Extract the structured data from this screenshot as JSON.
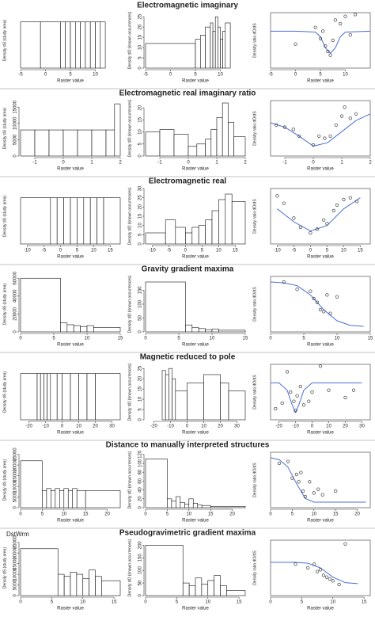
{
  "chart_data": [
    {
      "type": "histogram",
      "xlabel": "Raster value",
      "ylabel": "Density dS (study area)",
      "bins": [
        -5,
        -1,
        3,
        4,
        5,
        6,
        7,
        8,
        9,
        10,
        11,
        12
      ],
      "values": [
        1,
        1,
        1,
        1,
        1,
        1,
        1,
        1,
        1,
        1,
        1
      ],
      "xlim": [
        -5,
        15
      ],
      "xticks": [
        -5,
        0,
        5,
        10
      ],
      "ylim": [
        0,
        1.2
      ]
    },
    {
      "type": "histogram",
      "title": "Electromagnetic imaginary",
      "xlabel": "Raster value",
      "ylabel": "Density dO (known occurrences)",
      "bins": [
        -5,
        5,
        6,
        7,
        8,
        8.5,
        9,
        9.5,
        10,
        10.5,
        11,
        12
      ],
      "values": [
        12,
        14,
        16,
        20,
        22,
        18,
        25,
        20,
        14,
        18,
        22
      ],
      "xlim": [
        -5,
        15
      ],
      "xticks": [
        -5,
        0,
        5,
        10
      ],
      "ylim": [
        0,
        27
      ],
      "yticks": [
        0,
        5,
        10,
        15,
        20,
        25
      ]
    },
    {
      "type": "scatter",
      "xlabel": "Raster value",
      "ylabel": "Density ratio dO/dS",
      "x": [
        0,
        4,
        5,
        5.5,
        6,
        6.5,
        7,
        7.5,
        8,
        9,
        10,
        11,
        12
      ],
      "values": [
        1.3,
        2.2,
        1.6,
        2.0,
        1.2,
        0.9,
        0.7,
        1.5,
        2.6,
        2.4,
        2.8,
        1.8,
        2.9
      ],
      "fit": {
        "x": [
          -5,
          0,
          4,
          5,
          6,
          7,
          8,
          9,
          10,
          15
        ],
        "values": [
          2,
          2,
          1.95,
          1.7,
          1.1,
          0.8,
          1.1,
          1.7,
          1.95,
          2
        ],
        "color": "#4a6fd4"
      },
      "xlim": [
        -5,
        15
      ],
      "xticks": [
        -5,
        0,
        5,
        10
      ],
      "ylim": [
        0,
        3
      ]
    },
    {
      "type": "histogram",
      "xlabel": "Raster value",
      "ylabel": "Density dS (study area)",
      "bins": [
        -1.5,
        -1,
        -0.5,
        0,
        0.5,
        1,
        1.5,
        1.8,
        2
      ],
      "values": [
        8000,
        8000,
        8000,
        8000,
        8000,
        8000,
        8000,
        16000
      ],
      "xlim": [
        -1.5,
        2
      ],
      "xticks": [
        -1,
        0,
        1,
        2
      ],
      "ylim": [
        0,
        17000
      ],
      "yticks": [
        0,
        5000,
        10000,
        15000
      ]
    },
    {
      "type": "histogram",
      "title": "Electromagnetic real imaginary ratio",
      "xlabel": "Raster value",
      "ylabel": "Density dO (known occurrences)",
      "bins": [
        -1.5,
        -1,
        -0.5,
        0,
        0.3,
        0.6,
        0.8,
        1,
        1.2,
        1.4,
        1.6,
        2
      ],
      "values": [
        10,
        11,
        9,
        4,
        5,
        7,
        11,
        16,
        22,
        14,
        8
      ],
      "xlim": [
        -1.5,
        2
      ],
      "xticks": [
        -1,
        0,
        1,
        2
      ],
      "ylim": [
        0,
        23
      ],
      "yticks": [
        0,
        5,
        10,
        15,
        20
      ]
    },
    {
      "type": "scatter",
      "xlabel": "Raster value",
      "ylabel": "Density ratio dO/dS",
      "x": [
        -1.3,
        -1,
        -0.7,
        -0.5,
        0,
        0.2,
        0.4,
        0.6,
        0.8,
        1,
        1.1,
        1.3,
        1.5
      ],
      "values": [
        1.4,
        1.3,
        1.2,
        0.9,
        0.5,
        0.9,
        0.8,
        0.9,
        1.4,
        1.8,
        2.2,
        1.7,
        1.9
      ],
      "fit": {
        "x": [
          -1.5,
          -1,
          -0.5,
          0,
          0.5,
          1,
          1.5,
          2
        ],
        "values": [
          1.5,
          1.3,
          0.9,
          0.45,
          0.6,
          1.1,
          1.6,
          1.9
        ],
        "color": "#4a6fd4"
      },
      "xlim": [
        -1.5,
        2
      ],
      "xticks": [
        -1,
        0,
        1,
        2
      ],
      "ylim": [
        0,
        2.5
      ]
    },
    {
      "type": "histogram",
      "xlabel": "Raster value",
      "ylabel": "Density dS (study area)",
      "bins": [
        -12,
        -3,
        -1,
        1,
        3,
        5,
        7,
        9,
        11,
        13,
        18
      ],
      "values": [
        1,
        1,
        1,
        1,
        1,
        1,
        1,
        1,
        1,
        1
      ],
      "xlim": [
        -12,
        18
      ],
      "xticks": [
        -10,
        -5,
        0,
        5,
        10,
        15
      ],
      "ylim": [
        0,
        1.2
      ]
    },
    {
      "type": "histogram",
      "title": "Electromagnetic real",
      "xlabel": "Raster value",
      "ylabel": "Density dO (known occurrences)",
      "bins": [
        -12,
        -6,
        -3,
        0,
        2,
        4,
        6,
        8,
        10,
        12,
        14,
        18
      ],
      "values": [
        6,
        13,
        9,
        6,
        9,
        10,
        13,
        18,
        24,
        27,
        23
      ],
      "xlim": [
        -12,
        18
      ],
      "xticks": [
        -10,
        -5,
        0,
        5,
        10,
        15
      ],
      "ylim": [
        0,
        30
      ],
      "yticks": [
        0,
        5,
        10,
        15,
        20,
        25,
        30
      ]
    },
    {
      "type": "scatter",
      "xlabel": "Raster value",
      "ylabel": "Density ratio dO/dS",
      "x": [
        -10,
        -8,
        -5,
        -3,
        0,
        2,
        4,
        5,
        7,
        8,
        10,
        12,
        14
      ],
      "values": [
        2.6,
        2.2,
        1.4,
        0.9,
        0.6,
        0.8,
        1.3,
        1.1,
        1.8,
        2.1,
        2.4,
        2.5,
        2.3
      ],
      "fit": {
        "x": [
          -10,
          -5,
          0,
          5,
          10,
          15
        ],
        "values": [
          1.9,
          1.2,
          0.7,
          1.0,
          1.9,
          2.5
        ],
        "color": "#4a6fd4"
      },
      "xlim": [
        -12,
        18
      ],
      "xticks": [
        -10,
        -5,
        0,
        5,
        10,
        15
      ],
      "ylim": [
        0,
        3
      ]
    },
    {
      "type": "histogram",
      "xlabel": "Raster value",
      "ylabel": "Density dS (study area)",
      "bins": [
        0,
        6,
        7,
        8,
        9,
        10,
        11,
        15
      ],
      "values": [
        60000,
        10000,
        8000,
        7000,
        6000,
        7000,
        5000
      ],
      "xlim": [
        0,
        15
      ],
      "xticks": [
        0,
        5,
        10,
        15
      ],
      "ylim": [
        0,
        62000
      ],
      "yticks": [
        0,
        20000,
        40000,
        60000
      ]
    },
    {
      "type": "histogram",
      "title": "Gravity gradient maxima",
      "xlabel": "Raster value",
      "ylabel": "Density dO (known occurrences)",
      "bins": [
        0,
        6,
        7,
        8,
        9,
        10,
        11,
        15
      ],
      "values": [
        180,
        25,
        15,
        12,
        8,
        10,
        6
      ],
      "xlim": [
        0,
        15
      ],
      "xticks": [
        0,
        5,
        10,
        15
      ],
      "ylim": [
        0,
        200
      ],
      "yticks": [
        0,
        50,
        100,
        150
      ]
    },
    {
      "type": "scatter",
      "xlabel": "Raster value",
      "ylabel": "Density ratio dO/dS",
      "x": [
        2,
        4,
        6,
        6.5,
        7,
        7.5,
        8,
        8.5,
        9,
        10
      ],
      "values": [
        2.7,
        2.3,
        2.2,
        1.8,
        1.6,
        1.2,
        1.1,
        2.0,
        1.0,
        1.9
      ],
      "fit": {
        "x": [
          0,
          2,
          4,
          6,
          8,
          10,
          12,
          14
        ],
        "values": [
          2.7,
          2.65,
          2.5,
          2.0,
          1.2,
          0.6,
          0.35,
          0.3
        ],
        "color": "#4a6fd4"
      },
      "xlim": [
        0,
        15
      ],
      "xticks": [
        0,
        5,
        10,
        15
      ],
      "ylim": [
        0,
        3
      ]
    },
    {
      "type": "histogram",
      "xlabel": "Raster value",
      "ylabel": "Density dS (study area)",
      "bins": [
        -25,
        -15,
        -13,
        -11,
        -9,
        -7,
        -3,
        0,
        5,
        10,
        15,
        20,
        35
      ],
      "values": [
        1,
        1,
        1,
        1,
        1,
        1,
        1,
        1,
        1,
        1,
        1,
        1
      ],
      "xlim": [
        -25,
        35
      ],
      "xticks": [
        -20,
        -10,
        0,
        10,
        20,
        30
      ],
      "ylim": [
        0,
        1.2
      ]
    },
    {
      "type": "histogram",
      "title": "Magnetic reduced to pole",
      "xlabel": "Raster value",
      "ylabel": "Density dO (known occurrences)",
      "bins": [
        -25,
        -15,
        -13,
        -11,
        -9,
        -7,
        0,
        10,
        20,
        25,
        35
      ],
      "values": [
        0,
        24,
        22,
        25,
        20,
        14,
        18,
        22,
        18,
        14
      ],
      "xlim": [
        -25,
        35
      ],
      "xticks": [
        -20,
        -10,
        0,
        10,
        20,
        30
      ],
      "ylim": [
        0,
        27
      ],
      "yticks": [
        0,
        5,
        10,
        15,
        20,
        25
      ]
    },
    {
      "type": "scatter",
      "xlabel": "Raster value",
      "ylabel": "Density ratio dO/dS",
      "x": [
        -22,
        -18,
        -15,
        -13,
        -11,
        -10,
        -9,
        -7,
        -5,
        -2,
        0,
        5,
        10,
        20,
        25
      ],
      "values": [
        0.6,
        0.9,
        2.6,
        1.5,
        1.0,
        0.5,
        1.3,
        1.8,
        0.8,
        1.0,
        1.5,
        2.9,
        1.6,
        1.2,
        1.6
      ],
      "fit": {
        "x": [
          -25,
          -20,
          -15,
          -12,
          -10,
          -8,
          -5,
          0,
          10,
          30
        ],
        "values": [
          2,
          2,
          1.6,
          0.8,
          0.4,
          0.8,
          1.6,
          2,
          2,
          2
        ],
        "color": "#4a6fd4"
      },
      "xlim": [
        -25,
        35
      ],
      "xticks": [
        -20,
        -10,
        0,
        10,
        20,
        30
      ],
      "ylim": [
        0,
        3
      ]
    },
    {
      "type": "histogram",
      "xlabel": "Raster value",
      "ylabel": "Density dS (study area)",
      "bins": [
        0,
        5,
        6,
        7,
        8,
        9,
        10,
        11,
        12,
        13,
        15,
        23
      ],
      "values": [
        22000,
        8000,
        9000,
        8000,
        9000,
        8000,
        9000,
        8000,
        9000,
        8000,
        8000
      ],
      "xlim": [
        0,
        23
      ],
      "xticks": [
        0,
        5,
        10,
        15,
        20
      ],
      "ylim": [
        0,
        26000
      ],
      "yticks": [
        0,
        5000,
        10000,
        15000,
        20000,
        25000
      ]
    },
    {
      "type": "histogram",
      "title": "Distance to manually interpreted structures",
      "xlabel": "Raster value",
      "ylabel": "Density dO (known occurrences)",
      "bins": [
        0,
        5,
        6,
        7,
        8,
        9,
        10,
        11,
        12,
        13,
        15,
        23
      ],
      "values": [
        110,
        20,
        15,
        25,
        12,
        8,
        20,
        10,
        6,
        5,
        3
      ],
      "xlim": [
        0,
        23
      ],
      "xticks": [
        0,
        5,
        10,
        15,
        20
      ],
      "ylim": [
        0,
        125
      ],
      "yticks": [
        0,
        20,
        40,
        60,
        80,
        100,
        120
      ]
    },
    {
      "type": "scatter",
      "xlabel": "Raster value",
      "ylabel": "Density ratio dO/dS",
      "x": [
        2,
        4,
        5,
        6,
        6.5,
        7,
        7.5,
        8,
        9,
        10,
        11,
        12,
        15
      ],
      "values": [
        2.4,
        2.5,
        1.6,
        1.8,
        1.4,
        1.9,
        0.9,
        0.6,
        1.4,
        0.8,
        1.0,
        0.7,
        0.9
      ],
      "fit": {
        "x": [
          0,
          2,
          4,
          6,
          8,
          10,
          15,
          22
        ],
        "values": [
          2.7,
          2.6,
          2.2,
          1.3,
          0.5,
          0.3,
          0.3,
          0.3
        ],
        "color": "#4a6fd4"
      },
      "xlim": [
        0,
        23
      ],
      "xticks": [
        0,
        5,
        10,
        15,
        20
      ],
      "ylim": [
        0,
        3
      ]
    },
    {
      "type": "histogram",
      "annotation": "DstWrm",
      "xlabel": "Raster value",
      "ylabel": "Density dS (study area)",
      "bins": [
        0,
        6,
        7,
        8,
        9,
        10,
        11,
        12,
        13,
        16
      ],
      "values": [
        22000,
        10000,
        9000,
        11000,
        10000,
        8000,
        12000,
        9000,
        7000
      ],
      "xlim": [
        0,
        16
      ],
      "xticks": [
        0,
        5,
        10,
        15
      ],
      "ylim": [
        0,
        26000
      ],
      "yticks": [
        0,
        5000,
        10000,
        15000,
        20000,
        25000
      ]
    },
    {
      "type": "histogram",
      "title": "Pseudogravimetric gradient maxima",
      "xlabel": "Raster value",
      "ylabel": "Density dO (known occurrences)",
      "bins": [
        0,
        6,
        7,
        8,
        9,
        10,
        11,
        12,
        13,
        16
      ],
      "values": [
        200,
        50,
        40,
        70,
        45,
        60,
        80,
        40,
        20
      ],
      "xlim": [
        0,
        16
      ],
      "xticks": [
        0,
        5,
        10,
        15
      ],
      "ylim": [
        0,
        220
      ],
      "yticks": [
        0,
        50,
        100,
        150,
        200
      ]
    },
    {
      "type": "scatter",
      "xlabel": "Raster value",
      "ylabel": "Density ratio dO/dS",
      "x": [
        4,
        6,
        7,
        7.5,
        8,
        8.5,
        9,
        9.5,
        10,
        11,
        12
      ],
      "values": [
        1.7,
        1.5,
        1.7,
        1.3,
        1.4,
        1.1,
        1.0,
        0.9,
        0.8,
        0.6,
        2.8
      ],
      "fit": {
        "x": [
          0,
          4,
          6,
          8,
          10,
          12,
          14
        ],
        "values": [
          1.8,
          1.8,
          1.75,
          1.5,
          1.0,
          0.7,
          0.65
        ],
        "color": "#4a6fd4"
      },
      "xlim": [
        0,
        16
      ],
      "xticks": [
        0,
        5,
        10,
        15
      ],
      "ylim": [
        0,
        3
      ]
    }
  ]
}
